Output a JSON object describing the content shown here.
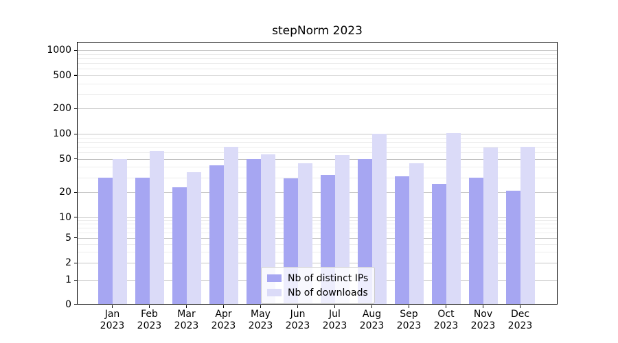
{
  "title": "stepNorm 2023",
  "legend": {
    "items": [
      {
        "label": "Nb of distinct IPs",
        "color": "#a6a6f2"
      },
      {
        "label": "Nb of downloads",
        "color": "#dbdbf8"
      }
    ]
  },
  "x_axis": {
    "months": [
      "Jan",
      "Feb",
      "Mar",
      "Apr",
      "May",
      "Jun",
      "Jul",
      "Aug",
      "Sep",
      "Oct",
      "Nov",
      "Dec"
    ],
    "year": "2023"
  },
  "y_axis": {
    "tick_labels": [
      "1000",
      "500",
      "200",
      "100",
      "50",
      "20",
      "10",
      "5",
      "2",
      "1",
      "0"
    ]
  },
  "chart_data": {
    "type": "bar",
    "title": "stepNorm 2023",
    "categories": [
      "Jan 2023",
      "Feb 2023",
      "Mar 2023",
      "Apr 2023",
      "May 2023",
      "Jun 2023",
      "Jul 2023",
      "Aug 2023",
      "Sep 2023",
      "Oct 2023",
      "Nov 2023",
      "Dec 2023"
    ],
    "series": [
      {
        "name": "Nb of distinct IPs",
        "color": "#a6a6f2",
        "values": [
          30,
          30,
          23,
          42,
          50,
          29,
          32,
          50,
          31,
          25,
          30,
          21
        ]
      },
      {
        "name": "Nb of downloads",
        "color": "#dbdbf8",
        "values": [
          50,
          62,
          35,
          70,
          57,
          44,
          56,
          101,
          44,
          102,
          69,
          70
        ]
      }
    ],
    "xlabel": "",
    "ylabel": "",
    "yscale": "log-like (symlog), linear below 1",
    "yticks": [
      0,
      1,
      2,
      5,
      10,
      20,
      50,
      100,
      200,
      500,
      1000
    ],
    "minor_gridlines": [
      3,
      4,
      6,
      7,
      8,
      9,
      30,
      40,
      60,
      70,
      80,
      90,
      300,
      400,
      600,
      700,
      800,
      900
    ],
    "ylim": [
      0,
      1260
    ],
    "grid": true,
    "legend_position": "lower center"
  }
}
